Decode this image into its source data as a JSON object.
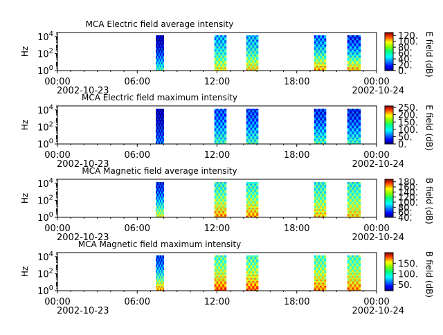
{
  "figure": {
    "xaxis": {
      "start": "2002-10-23 00:00",
      "end": "2002-10-24 00:00",
      "tick_hours": [
        0,
        6,
        12,
        18,
        24
      ],
      "tick_labels": [
        "00:00",
        "06:00",
        "12:00",
        "18:00",
        "00:00"
      ],
      "date_labels": [
        "2002-10-23",
        "2002-10-24"
      ]
    }
  },
  "chart_data": [
    {
      "type": "heatmap",
      "title": "MCA  Electric field average intensity",
      "ylabel": "Hz",
      "yscale": "log",
      "ylim": [
        1,
        30000
      ],
      "y_tick_labels": [
        "10^0",
        "10^2",
        "10^4"
      ],
      "colorbar": {
        "label": "E field (dB)",
        "range": [
          0,
          130
        ],
        "ticks": [
          "0.",
          "20.",
          "40.",
          "60.",
          "80.",
          "100.",
          "120."
        ]
      },
      "segments": [
        {
          "start": "07:24",
          "end": "08:00",
          "level_top": 5,
          "level_bottom": 55
        },
        {
          "start": "11:48",
          "end": "12:42",
          "level_top": 38,
          "level_bottom": 80
        },
        {
          "start": "14:12",
          "end": "15:06",
          "level_top": 38,
          "level_bottom": 85
        },
        {
          "start": "19:18",
          "end": "20:12",
          "level_top": 30,
          "level_bottom": 92
        },
        {
          "start": "21:48",
          "end": "22:48",
          "level_top": 20,
          "level_bottom": 90
        }
      ]
    },
    {
      "type": "heatmap",
      "title": "MCA  Electric field maximum intensity",
      "ylabel": "Hz",
      "yscale": "log",
      "ylim": [
        1,
        30000
      ],
      "y_tick_labels": [
        "10^0",
        "10^2",
        "10^4"
      ],
      "colorbar": {
        "label": "E field (dB)",
        "range": [
          0,
          260
        ],
        "ticks": [
          "0.",
          "50.",
          "100.",
          "150.",
          "200.",
          "250."
        ]
      },
      "segments": [
        {
          "start": "07:24",
          "end": "08:00",
          "level_top": 10,
          "level_bottom": 60
        },
        {
          "start": "11:48",
          "end": "12:42",
          "level_top": 50,
          "level_bottom": 110
        },
        {
          "start": "14:12",
          "end": "15:06",
          "level_top": 45,
          "level_bottom": 110
        },
        {
          "start": "19:18",
          "end": "20:12",
          "level_top": 40,
          "level_bottom": 115
        },
        {
          "start": "21:48",
          "end": "22:48",
          "level_top": 35,
          "level_bottom": 110
        }
      ]
    },
    {
      "type": "heatmap",
      "title": "MCA  Magnetic field average intensity",
      "ylabel": "Hz",
      "yscale": "log",
      "ylim": [
        1,
        30000
      ],
      "y_tick_labels": [
        "10^0",
        "10^2",
        "10^4"
      ],
      "colorbar": {
        "label": "B field (dB)",
        "range": [
          40,
          190
        ],
        "ticks": [
          "40.",
          "60.",
          "80.",
          "100.",
          "120.",
          "140.",
          "160.",
          "180."
        ]
      },
      "segments": [
        {
          "start": "07:24",
          "end": "08:00",
          "level_top": 60,
          "level_bottom": 130
        },
        {
          "start": "11:48",
          "end": "12:42",
          "level_top": 100,
          "level_bottom": 150
        },
        {
          "start": "14:12",
          "end": "15:06",
          "level_top": 100,
          "level_bottom": 150
        },
        {
          "start": "19:18",
          "end": "20:12",
          "level_top": 100,
          "level_bottom": 140
        },
        {
          "start": "21:48",
          "end": "22:48",
          "level_top": 100,
          "level_bottom": 140
        }
      ]
    },
    {
      "type": "heatmap",
      "title": "MCA  Magnetic field maximum intensity",
      "ylabel": "Hz",
      "yscale": "log",
      "ylim": [
        1,
        30000
      ],
      "y_tick_labels": [
        "10^0",
        "10^2",
        "10^4"
      ],
      "colorbar": {
        "label": "B field (dB)",
        "range": [
          20,
          200
        ],
        "ticks": [
          "50.",
          "100.",
          "150."
        ]
      },
      "segments": [
        {
          "start": "07:24",
          "end": "08:00",
          "level_top": 50,
          "level_bottom": 150
        },
        {
          "start": "11:48",
          "end": "12:42",
          "level_top": 100,
          "level_bottom": 165
        },
        {
          "start": "14:12",
          "end": "15:06",
          "level_top": 100,
          "level_bottom": 165
        },
        {
          "start": "19:18",
          "end": "20:12",
          "level_top": 100,
          "level_bottom": 155
        },
        {
          "start": "21:48",
          "end": "22:48",
          "level_top": 100,
          "level_bottom": 155
        }
      ]
    }
  ]
}
